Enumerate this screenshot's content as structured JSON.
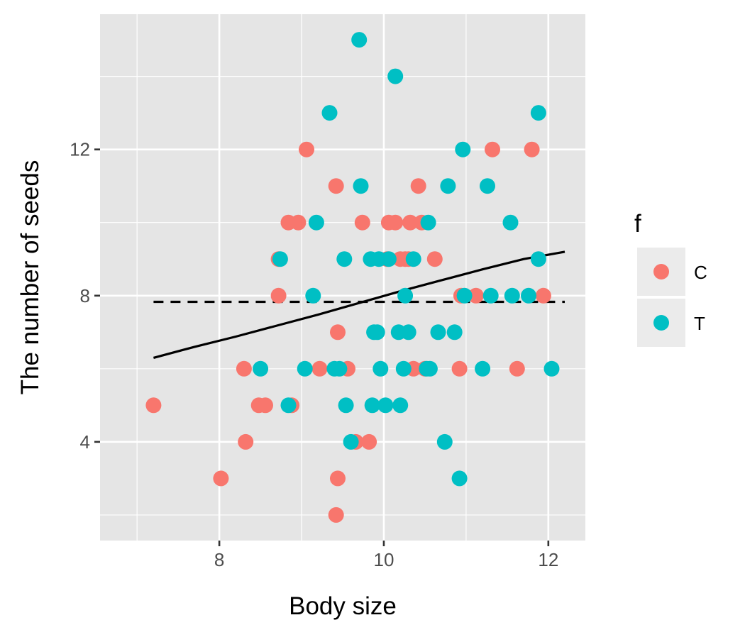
{
  "chart_data": {
    "type": "scatter",
    "title": "",
    "xlabel": "Body size",
    "ylabel": "The number of seeds",
    "xlim": [
      6.55,
      12.45
    ],
    "ylim": [
      1.3,
      15.7
    ],
    "x_ticks": [
      8,
      10,
      12
    ],
    "y_ticks": [
      4,
      8,
      12
    ],
    "x_tick_labels": [
      "8",
      "10",
      "12"
    ],
    "y_tick_labels": [
      "4",
      "8",
      "12"
    ],
    "grid": true,
    "background": "#e5e5e5",
    "legend": {
      "title": "f",
      "placement": "right",
      "entries": [
        {
          "label": "C",
          "color": "#f8766d"
        },
        {
          "label": "T",
          "color": "#00bfc4"
        }
      ]
    },
    "series": [
      {
        "name": "C",
        "color": "#f8766d",
        "points": [
          [
            7.2,
            5
          ],
          [
            8.02,
            3
          ],
          [
            8.3,
            6
          ],
          [
            8.32,
            4
          ],
          [
            8.48,
            5
          ],
          [
            8.56,
            5
          ],
          [
            8.72,
            8
          ],
          [
            8.72,
            9
          ],
          [
            8.84,
            10
          ],
          [
            8.88,
            5
          ],
          [
            8.96,
            10
          ],
          [
            9.06,
            12
          ],
          [
            9.22,
            6
          ],
          [
            9.42,
            11
          ],
          [
            9.44,
            3
          ],
          [
            9.44,
            7
          ],
          [
            9.42,
            2
          ],
          [
            9.56,
            6
          ],
          [
            9.66,
            4
          ],
          [
            9.74,
            10
          ],
          [
            9.82,
            4
          ],
          [
            10.04,
            9
          ],
          [
            10.06,
            10
          ],
          [
            10.14,
            10
          ],
          [
            10.2,
            9
          ],
          [
            10.26,
            9
          ],
          [
            10.3,
            9
          ],
          [
            10.32,
            10
          ],
          [
            10.36,
            6
          ],
          [
            10.42,
            11
          ],
          [
            10.46,
            10
          ],
          [
            10.5,
            6
          ],
          [
            10.62,
            9
          ],
          [
            10.92,
            6
          ],
          [
            10.94,
            8
          ],
          [
            11.12,
            8
          ],
          [
            11.32,
            12
          ],
          [
            11.62,
            6
          ],
          [
            11.8,
            12
          ],
          [
            11.94,
            8
          ]
        ]
      },
      {
        "name": "T",
        "color": "#00bfc4",
        "points": [
          [
            8.5,
            6
          ],
          [
            8.74,
            9
          ],
          [
            8.84,
            5
          ],
          [
            9.04,
            6
          ],
          [
            9.14,
            8
          ],
          [
            9.18,
            10
          ],
          [
            9.34,
            13
          ],
          [
            9.4,
            6
          ],
          [
            9.46,
            6
          ],
          [
            9.52,
            9
          ],
          [
            9.54,
            5
          ],
          [
            9.6,
            4
          ],
          [
            9.7,
            15
          ],
          [
            9.72,
            11
          ],
          [
            9.84,
            9
          ],
          [
            9.86,
            5
          ],
          [
            9.88,
            7
          ],
          [
            9.92,
            7
          ],
          [
            9.94,
            9
          ],
          [
            9.96,
            6
          ],
          [
            10.02,
            5
          ],
          [
            10.06,
            9
          ],
          [
            10.14,
            14
          ],
          [
            10.18,
            7
          ],
          [
            10.2,
            5
          ],
          [
            10.24,
            6
          ],
          [
            10.26,
            8
          ],
          [
            10.3,
            7
          ],
          [
            10.36,
            9
          ],
          [
            10.52,
            6
          ],
          [
            10.54,
            10
          ],
          [
            10.56,
            6
          ],
          [
            10.66,
            7
          ],
          [
            10.74,
            4
          ],
          [
            10.78,
            11
          ],
          [
            10.86,
            7
          ],
          [
            10.92,
            3
          ],
          [
            10.98,
            8
          ],
          [
            10.96,
            12
          ],
          [
            11.2,
            6
          ],
          [
            11.26,
            11
          ],
          [
            11.3,
            8
          ],
          [
            11.54,
            10
          ],
          [
            11.56,
            8
          ],
          [
            11.76,
            8
          ],
          [
            11.88,
            9
          ],
          [
            11.88,
            13
          ],
          [
            12.04,
            6
          ]
        ]
      }
    ],
    "lines": [
      {
        "style": "solid",
        "color": "#000000",
        "points": [
          [
            7.2,
            6.3
          ],
          [
            7.7,
            6.6
          ],
          [
            8.2,
            6.88
          ],
          [
            8.7,
            7.18
          ],
          [
            9.2,
            7.48
          ],
          [
            9.7,
            7.8
          ],
          [
            10.2,
            8.12
          ],
          [
            10.7,
            8.42
          ],
          [
            11.2,
            8.72
          ],
          [
            11.7,
            9.0
          ],
          [
            12.2,
            9.2
          ]
        ]
      },
      {
        "style": "dashed",
        "color": "#000000",
        "points": [
          [
            7.2,
            7.83
          ],
          [
            12.2,
            7.83
          ]
        ]
      }
    ]
  }
}
